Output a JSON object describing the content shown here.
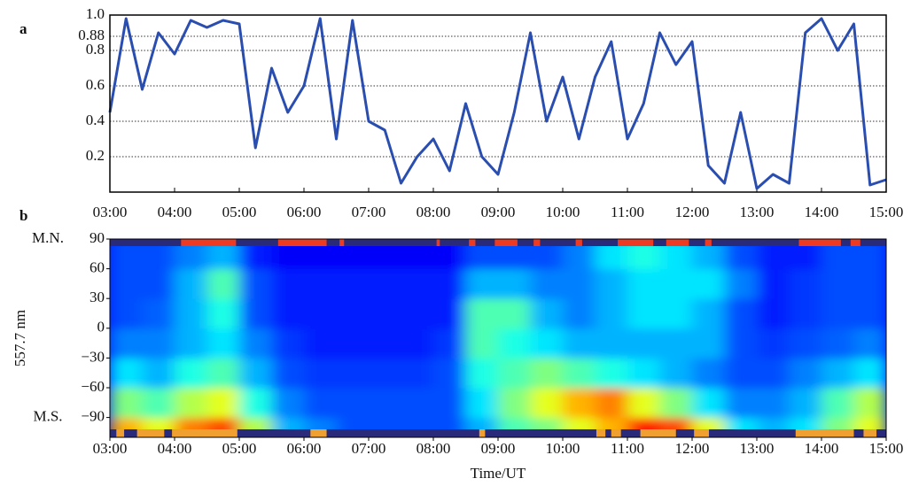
{
  "chart_data": [
    {
      "type": "line",
      "panel_label": "a",
      "x": [
        3,
        3.25,
        3.5,
        3.75,
        4,
        4.25,
        4.5,
        4.75,
        5,
        5.25,
        5.5,
        5.75,
        6,
        6.25,
        6.5,
        6.75,
        7,
        7.25,
        7.5,
        7.75,
        8,
        8.25,
        8.5,
        8.75,
        9,
        9.25,
        9.5,
        9.75,
        10,
        10.25,
        10.5,
        10.75,
        11,
        11.25,
        11.5,
        11.75,
        12,
        12.25,
        12.5,
        12.75,
        13,
        13.25,
        13.5,
        13.75,
        14,
        14.25,
        14.5,
        14.75,
        15
      ],
      "series": [
        {
          "color": "#2a4db0",
          "values": [
            0.45,
            0.98,
            0.58,
            0.9,
            0.78,
            0.97,
            0.93,
            0.97,
            0.95,
            0.25,
            0.7,
            0.45,
            0.6,
            0.98,
            0.3,
            0.97,
            0.4,
            0.35,
            0.05,
            0.2,
            0.3,
            0.12,
            0.5,
            0.2,
            0.1,
            0.45,
            0.9,
            0.4,
            0.65,
            0.3,
            0.65,
            0.85,
            0.3,
            0.5,
            0.9,
            0.72,
            0.85,
            0.15,
            0.05,
            0.45,
            0.02,
            0.1,
            0.05,
            0.9,
            0.98,
            0.8,
            0.95,
            0.04,
            0.07
          ]
        }
      ],
      "xlim": [
        3,
        15
      ],
      "xticks": [
        {
          "value": 3,
          "label": "03:00"
        },
        {
          "value": 4,
          "label": "04:00"
        },
        {
          "value": 5,
          "label": "05:00"
        },
        {
          "value": 6,
          "label": "06:00"
        },
        {
          "value": 7,
          "label": "07:00"
        },
        {
          "value": 8,
          "label": "08:00"
        },
        {
          "value": 9,
          "label": "09:00"
        },
        {
          "value": 10,
          "label": "10:00"
        },
        {
          "value": 11,
          "label": "11:00"
        },
        {
          "value": 12,
          "label": "12:00"
        },
        {
          "value": 13,
          "label": "13:00"
        },
        {
          "value": 14,
          "label": "14:00"
        },
        {
          "value": 15,
          "label": "15:00"
        }
      ],
      "ylim": [
        0,
        1
      ],
      "yticks": [
        0.2,
        0.4,
        0.6,
        0.8,
        0.88,
        {
          "value": 1,
          "label": "1.0"
        }
      ],
      "grid": true
    },
    {
      "type": "heatmap",
      "panel_label": "b",
      "y_label": "557.7 nm",
      "x_label": "Time/UT",
      "annotations": [
        {
          "text": "M.N.",
          "y": 90
        },
        {
          "text": "M.S.",
          "y": -90
        }
      ],
      "x_bins": [
        3,
        3.5,
        4,
        4.5,
        5,
        5.5,
        6,
        6.5,
        7,
        7.5,
        8,
        8.5,
        9,
        9.5,
        10,
        10.5,
        11,
        11.5,
        12,
        12.5,
        13,
        13.5,
        14,
        14.5,
        15
      ],
      "y_bins": [
        -110,
        -90,
        -60,
        -30,
        0,
        30,
        60,
        90
      ],
      "z": [
        [
          0.7,
          0.6,
          0.75,
          0.8,
          0.55,
          0.3,
          0.25,
          0.2,
          0.2,
          0.2,
          0.2,
          0.3,
          0.45,
          0.5,
          0.6,
          0.7,
          0.85,
          0.8,
          0.6,
          0.35,
          0.3,
          0.35,
          0.5,
          0.6
        ],
        [
          0.5,
          0.45,
          0.55,
          0.6,
          0.4,
          0.25,
          0.2,
          0.2,
          0.2,
          0.2,
          0.2,
          0.35,
          0.5,
          0.6,
          0.7,
          0.75,
          0.6,
          0.5,
          0.35,
          0.25,
          0.25,
          0.3,
          0.45,
          0.55
        ],
        [
          0.35,
          0.3,
          0.4,
          0.45,
          0.3,
          0.2,
          0.18,
          0.18,
          0.18,
          0.18,
          0.2,
          0.4,
          0.45,
          0.5,
          0.45,
          0.4,
          0.35,
          0.3,
          0.25,
          0.2,
          0.2,
          0.25,
          0.3,
          0.35
        ],
        [
          0.25,
          0.25,
          0.3,
          0.35,
          0.25,
          0.18,
          0.15,
          0.15,
          0.15,
          0.15,
          0.18,
          0.45,
          0.4,
          0.35,
          0.3,
          0.3,
          0.3,
          0.3,
          0.3,
          0.2,
          0.18,
          0.2,
          0.22,
          0.25
        ],
        [
          0.2,
          0.22,
          0.3,
          0.4,
          0.2,
          0.15,
          0.15,
          0.15,
          0.15,
          0.15,
          0.15,
          0.45,
          0.45,
          0.3,
          0.25,
          0.3,
          0.35,
          0.35,
          0.3,
          0.2,
          0.15,
          0.18,
          0.2,
          0.2
        ],
        [
          0.2,
          0.2,
          0.3,
          0.45,
          0.2,
          0.15,
          0.15,
          0.15,
          0.15,
          0.15,
          0.15,
          0.3,
          0.3,
          0.25,
          0.25,
          0.3,
          0.35,
          0.35,
          0.35,
          0.25,
          0.15,
          0.18,
          0.2,
          0.2
        ],
        [
          0.2,
          0.2,
          0.25,
          0.3,
          0.15,
          0.12,
          0.12,
          0.12,
          0.12,
          0.12,
          0.12,
          0.2,
          0.2,
          0.2,
          0.25,
          0.35,
          0.4,
          0.35,
          0.3,
          0.2,
          0.15,
          0.15,
          0.2,
          0.2
        ]
      ],
      "zlim": [
        0,
        1
      ],
      "colormap": "jet",
      "north_color": "#ee3a22",
      "north_intervals": [
        [
          4.1,
          4.95
        ],
        [
          5.6,
          6.35
        ],
        [
          6.55,
          6.62
        ],
        [
          8.05,
          8.1
        ],
        [
          8.55,
          8.65
        ],
        [
          8.95,
          9.3
        ],
        [
          9.55,
          9.65
        ],
        [
          10.2,
          10.3
        ],
        [
          10.85,
          11.4
        ],
        [
          11.6,
          11.95
        ],
        [
          12.2,
          12.3
        ],
        [
          13.65,
          14.3
        ],
        [
          14.45,
          14.6
        ]
      ],
      "south_color": "#f0a030",
      "south_intervals": [
        [
          3.1,
          3.22
        ],
        [
          3.42,
          3.84
        ],
        [
          3.96,
          4.97
        ],
        [
          6.1,
          6.35
        ],
        [
          8.71,
          8.8
        ],
        [
          10.52,
          10.66
        ],
        [
          10.75,
          10.9
        ],
        [
          11.2,
          11.75
        ],
        [
          12.03,
          12.26
        ],
        [
          13.6,
          14.5
        ],
        [
          14.65,
          14.85
        ]
      ],
      "xlim": [
        3,
        15
      ],
      "xticks": [
        {
          "value": 3,
          "label": "03:00"
        },
        {
          "value": 4,
          "label": "04:00"
        },
        {
          "value": 5,
          "label": "05:00"
        },
        {
          "value": 6,
          "label": "06:00"
        },
        {
          "value": 7,
          "label": "07:00"
        },
        {
          "value": 8,
          "label": "08:00"
        },
        {
          "value": 9,
          "label": "09:00"
        },
        {
          "value": 10,
          "label": "10:00"
        },
        {
          "value": 11,
          "label": "11:00"
        },
        {
          "value": 12,
          "label": "12:00"
        },
        {
          "value": 13,
          "label": "13:00"
        },
        {
          "value": 14,
          "label": "14:00"
        },
        {
          "value": 15,
          "label": "15:00"
        }
      ],
      "ylim": [
        -110,
        90
      ],
      "yticks": [
        90,
        60,
        30,
        0,
        {
          "value": -30,
          "label": "−30"
        },
        {
          "value": -60,
          "label": "−60"
        },
        {
          "value": -90,
          "label": "−90"
        }
      ]
    }
  ]
}
